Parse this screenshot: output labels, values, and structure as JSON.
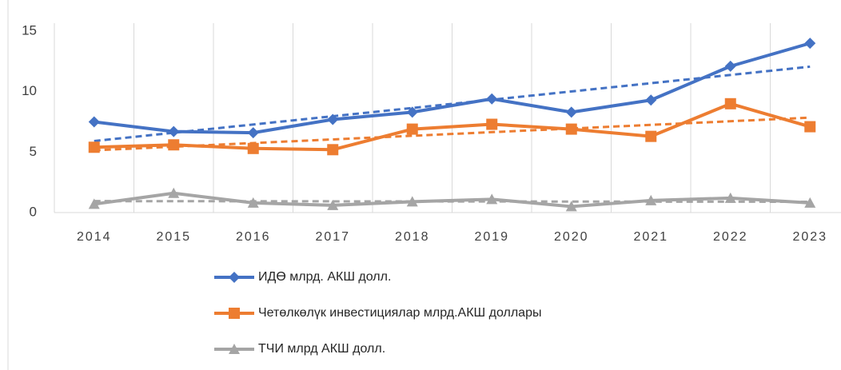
{
  "chart_data": {
    "type": "line",
    "categories": [
      "2014",
      "2015",
      "2016",
      "2017",
      "2018",
      "2019",
      "2020",
      "2021",
      "2022",
      "2023"
    ],
    "series": [
      {
        "name": "ИДӨ млрд. АКШ долл.",
        "color": "#4472c4",
        "marker": "diamond",
        "trendline": true,
        "values": [
          7.5,
          6.7,
          6.6,
          7.7,
          8.3,
          9.4,
          8.3,
          9.3,
          12.1,
          14.0
        ]
      },
      {
        "name": "Четөлкөлүк инвестициялар млрд.АКШ доллары",
        "color": "#ed7d31",
        "marker": "square",
        "trendline": true,
        "values": [
          5.4,
          5.6,
          5.3,
          5.2,
          6.9,
          7.3,
          6.9,
          6.3,
          9.0,
          7.1
        ]
      },
      {
        "name": "ТЧИ млрд АКШ долл.",
        "color": "#a5a5a5",
        "marker": "triangle",
        "trendline": true,
        "values": [
          0.7,
          1.6,
          0.8,
          0.6,
          0.9,
          1.1,
          0.5,
          1.0,
          1.2,
          0.8
        ]
      }
    ],
    "ylim": [
      0,
      15
    ],
    "yticks": [
      0,
      5,
      10,
      15
    ],
    "grid": "vertical",
    "legend": "bottom"
  }
}
